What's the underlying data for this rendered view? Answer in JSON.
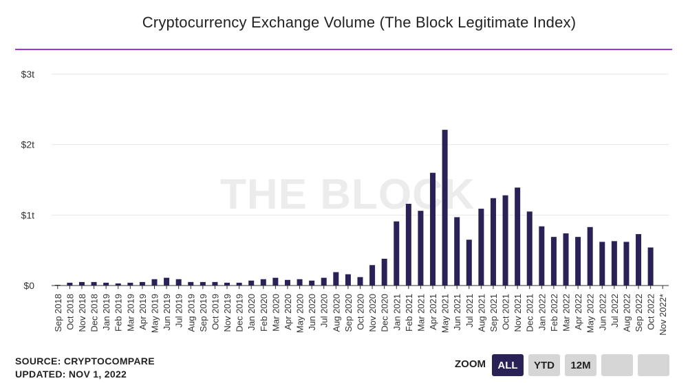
{
  "header": {
    "title": "Cryptocurrency Exchange Volume (The Block Legitimate Index)"
  },
  "watermark": "THE BLOCK",
  "footer": {
    "source": "SOURCE: CRYPTOCOMPARE",
    "updated": "UPDATED: NOV 1, 2022"
  },
  "zoom": {
    "label": "ZOOM",
    "buttons": [
      {
        "label": "ALL",
        "active": true
      },
      {
        "label": "YTD",
        "active": false
      },
      {
        "label": "12M",
        "active": false
      },
      {
        "label": "",
        "active": false
      },
      {
        "label": "",
        "active": false
      }
    ]
  },
  "colors": {
    "bar": "#2a2256",
    "accent_rule": "#9a35d6",
    "grid": "#e6e6e6"
  },
  "chart_data": {
    "type": "bar",
    "title": "Cryptocurrency Exchange Volume (The Block Legitimate Index)",
    "xlabel": "",
    "ylabel": "",
    "unit": "USD (trillions)",
    "ylim": [
      0,
      3
    ],
    "yticks": [
      0,
      1,
      2,
      3
    ],
    "ytick_labels": [
      "$0",
      "$1t",
      "$2t",
      "$3t"
    ],
    "grid": true,
    "categories": [
      "Sep 2018",
      "Oct 2018",
      "Nov 2018",
      "Dec 2018",
      "Jan 2019",
      "Feb 2019",
      "Mar 2019",
      "Apr 2019",
      "May 2019",
      "Jun 2019",
      "Jul 2019",
      "Aug 2019",
      "Sep 2019",
      "Oct 2019",
      "Nov 2019",
      "Dec 2019",
      "Jan 2020",
      "Feb 2020",
      "Mar 2020",
      "Apr 2020",
      "May 2020",
      "Jun 2020",
      "Jul 2020",
      "Aug 2020",
      "Sep 2020",
      "Oct 2020",
      "Nov 2020",
      "Dec 2020",
      "Jan 2021",
      "Feb 2021",
      "Mar 2021",
      "Apr 2021",
      "May 2021",
      "Jun 2021",
      "Jul 2021",
      "Aug 2021",
      "Sep 2021",
      "Oct 2021",
      "Nov 2021",
      "Dec 2021",
      "Jan 2022",
      "Feb 2022",
      "Mar 2022",
      "Apr 2022",
      "May 2022",
      "Jun 2022",
      "Jul 2022",
      "Aug 2022",
      "Sep 2022",
      "Oct 2022",
      "Nov 2022*"
    ],
    "values": [
      0.005,
      0.04,
      0.05,
      0.05,
      0.04,
      0.03,
      0.04,
      0.05,
      0.09,
      0.11,
      0.09,
      0.05,
      0.05,
      0.05,
      0.04,
      0.04,
      0.07,
      0.09,
      0.11,
      0.08,
      0.09,
      0.07,
      0.11,
      0.19,
      0.16,
      0.12,
      0.29,
      0.38,
      0.91,
      1.16,
      1.06,
      1.6,
      2.21,
      0.97,
      0.65,
      1.09,
      1.24,
      1.28,
      1.39,
      1.05,
      0.84,
      0.69,
      0.74,
      0.69,
      0.83,
      0.62,
      0.63,
      0.62,
      0.73,
      0.54,
      0
    ]
  }
}
